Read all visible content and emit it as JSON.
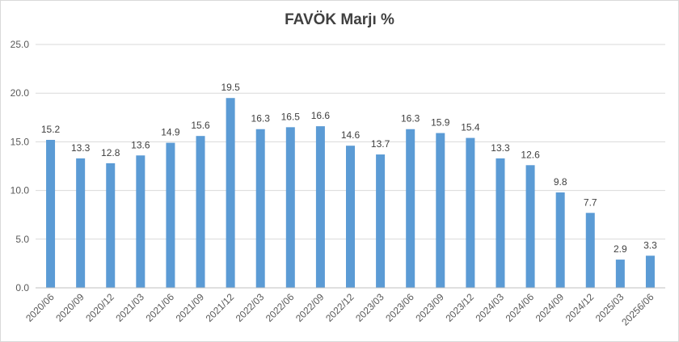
{
  "chart_data": {
    "type": "bar",
    "title": "FAVÖK Marjı %",
    "categories": [
      "2020/06",
      "2020/09",
      "2020/12",
      "2021/03",
      "2021/06",
      "2021/09",
      "2021/12",
      "2022/03",
      "2022/06",
      "2022/09",
      "2022/12",
      "2023/03",
      "2023/06",
      "2023/09",
      "2023/12",
      "2024/03",
      "2024/06",
      "2024/09",
      "2024/12",
      "2025/03",
      "20256/06"
    ],
    "values": [
      15.2,
      13.3,
      12.8,
      13.6,
      14.9,
      15.6,
      19.5,
      16.3,
      16.5,
      16.6,
      14.6,
      13.7,
      16.3,
      15.9,
      15.4,
      13.3,
      12.6,
      9.8,
      7.7,
      2.9,
      3.3
    ],
    "data_labels": [
      "15.2",
      "13.3",
      "12.8",
      "13.6",
      "14.9",
      "15.6",
      "19.5",
      "16.3",
      "16.5",
      "16.6",
      "14.6",
      "13.7",
      "16.3",
      "15.9",
      "15.4",
      "13.3",
      "12.6",
      "9.8",
      "7.7",
      "2.9",
      "3.3"
    ],
    "yticks": [
      "0.0",
      "5.0",
      "10.0",
      "15.0",
      "20.0",
      "25.0"
    ],
    "ylim": [
      0,
      25
    ],
    "xlabel": "",
    "ylabel": "",
    "grid": true,
    "legend": "none",
    "bar_color": "#5b9bd5"
  }
}
